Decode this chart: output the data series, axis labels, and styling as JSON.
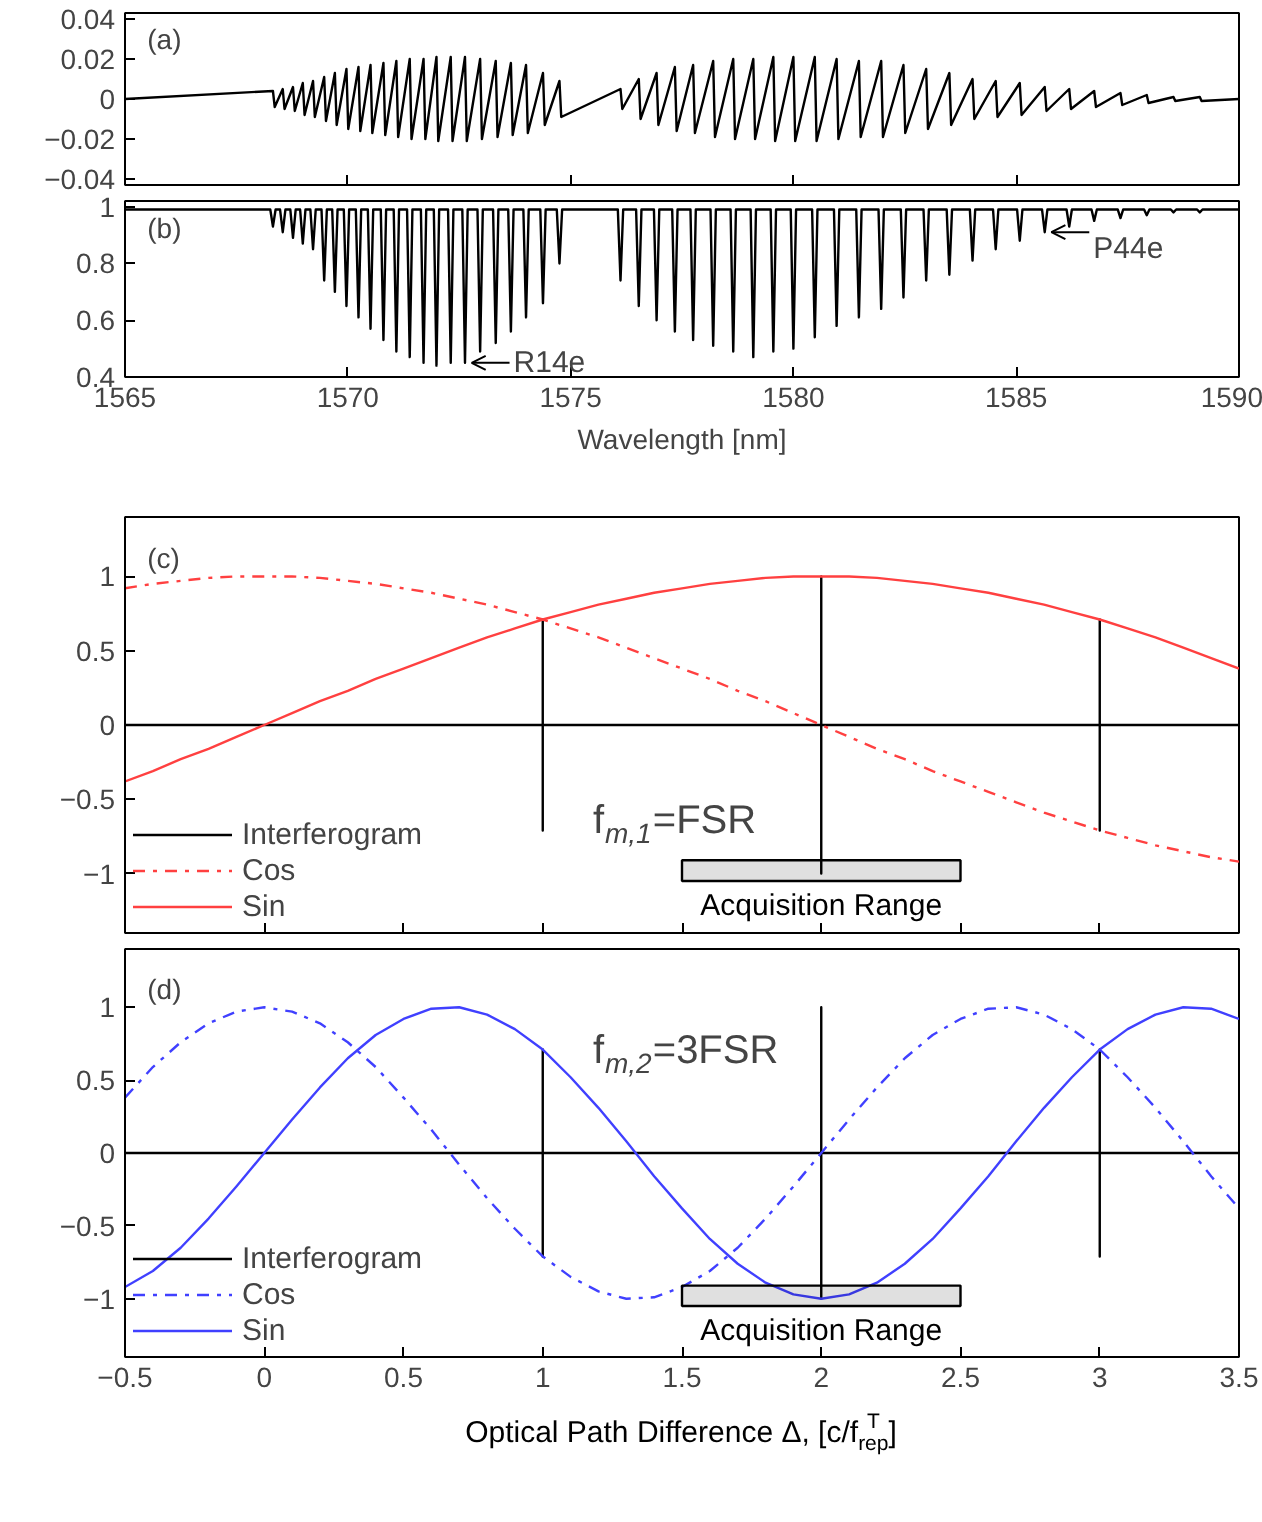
{
  "chart_data": [
    {
      "type": "line",
      "title": "(a)",
      "xlim": [
        1565,
        1590
      ],
      "xticks": [
        1565,
        1570,
        1575,
        1580,
        1585,
        1590
      ],
      "ylim": [
        -0.043,
        0.043
      ],
      "yticks": [
        -0.04,
        -0.02,
        0,
        0.02,
        0.04
      ],
      "tick_labels": "y",
      "series": [
        {
          "color": "#000000",
          "x": [
            1565,
            1568.32,
            1568.36,
            1568.54,
            1568.58,
            1568.77,
            1568.81,
            1568.99,
            1569.03,
            1569.22,
            1569.26,
            1569.47,
            1569.51,
            1569.71,
            1569.75,
            1569.97,
            1570.01,
            1570.24,
            1570.28,
            1570.51,
            1570.55,
            1570.8,
            1570.84,
            1571.09,
            1571.13,
            1571.39,
            1571.43,
            1571.7,
            1571.74,
            1571.99,
            1572.03,
            1572.31,
            1572.35,
            1572.63,
            1572.67,
            1572.97,
            1573.01,
            1573.32,
            1573.36,
            1573.66,
            1573.7,
            1574.0,
            1574.04,
            1574.38,
            1574.42,
            1574.75,
            1574.79,
            1576.12,
            1576.16,
            1576.53,
            1576.57,
            1576.93,
            1576.97,
            1577.34,
            1577.38,
            1577.75,
            1577.79,
            1578.2,
            1578.24,
            1578.65,
            1578.69,
            1579.1,
            1579.14,
            1579.55,
            1579.59,
            1580.0,
            1580.04,
            1580.48,
            1580.52,
            1580.97,
            1581.01,
            1581.47,
            1581.51,
            1581.97,
            1582.01,
            1582.47,
            1582.51,
            1582.98,
            1583.02,
            1583.5,
            1583.54,
            1584.02,
            1584.06,
            1584.54,
            1584.58,
            1585.08,
            1585.12,
            1585.64,
            1585.68,
            1586.19,
            1586.23,
            1586.75,
            1586.79,
            1587.34,
            1587.38,
            1587.93,
            1587.97,
            1588.53,
            1588.57,
            1589.12,
            1589.16,
            1590
          ],
          "values": [
            0,
            0.004,
            -0.004,
            0.005,
            -0.005,
            0.006,
            -0.006,
            0.008,
            -0.008,
            0.009,
            -0.009,
            0.011,
            -0.011,
            0.013,
            -0.013,
            0.015,
            -0.015,
            0.016,
            -0.016,
            0.017,
            -0.017,
            0.018,
            -0.018,
            0.019,
            -0.019,
            0.02,
            -0.02,
            0.02,
            -0.02,
            0.021,
            -0.021,
            0.021,
            -0.021,
            0.021,
            -0.021,
            0.02,
            -0.02,
            0.019,
            -0.019,
            0.018,
            -0.018,
            0.017,
            -0.017,
            0.013,
            -0.013,
            0.009,
            -0.009,
            0.005,
            -0.005,
            0.01,
            -0.01,
            0.013,
            -0.013,
            0.016,
            -0.016,
            0.017,
            -0.017,
            0.019,
            -0.019,
            0.02,
            -0.02,
            0.02,
            -0.02,
            0.021,
            -0.021,
            0.021,
            -0.021,
            0.021,
            -0.021,
            0.02,
            -0.02,
            0.019,
            -0.019,
            0.019,
            -0.019,
            0.017,
            -0.017,
            0.015,
            -0.015,
            0.013,
            -0.013,
            0.01,
            -0.01,
            0.009,
            -0.009,
            0.008,
            -0.008,
            0.006,
            -0.006,
            0.005,
            -0.005,
            0.004,
            -0.004,
            0.003,
            -0.003,
            0.002,
            -0.002,
            0.001,
            -0.001,
            0.001,
            -0.001,
            0
          ]
        }
      ]
    },
    {
      "type": "line",
      "title": "(b)",
      "xlabel": "Wavelength [nm]",
      "xlim": [
        1565,
        1590
      ],
      "xticks": [
        1565,
        1570,
        1575,
        1580,
        1585,
        1590
      ],
      "ylim": [
        0.4,
        1.02
      ],
      "yticks": [
        0.4,
        0.6,
        0.8,
        1
      ],
      "annotations": [
        {
          "text": "R14e",
          "x": 1572.63,
          "y": 0.45
        },
        {
          "text": "P44e",
          "x": 1585.64,
          "y": 0.91
        }
      ],
      "series": [
        {
          "color": "#000000",
          "x": [
            1565,
            1568.26,
            1568.32,
            1568.38,
            1568.48,
            1568.54,
            1568.6,
            1568.71,
            1568.77,
            1568.83,
            1568.93,
            1568.99,
            1569.05,
            1569.16,
            1569.22,
            1569.28,
            1569.41,
            1569.47,
            1569.53,
            1569.65,
            1569.71,
            1569.77,
            1569.91,
            1569.97,
            1570.03,
            1570.18,
            1570.24,
            1570.3,
            1570.45,
            1570.51,
            1570.57,
            1570.74,
            1570.8,
            1570.86,
            1571.03,
            1571.09,
            1571.15,
            1571.33,
            1571.39,
            1571.45,
            1571.64,
            1571.7,
            1571.76,
            1571.93,
            1571.99,
            1572.05,
            1572.25,
            1572.31,
            1572.37,
            1572.57,
            1572.63,
            1572.69,
            1572.91,
            1572.97,
            1573.03,
            1573.26,
            1573.32,
            1573.38,
            1573.6,
            1573.66,
            1573.72,
            1573.94,
            1574.0,
            1574.06,
            1574.32,
            1574.38,
            1574.44,
            1574.69,
            1574.75,
            1574.81,
            1576.06,
            1576.12,
            1576.18,
            1576.47,
            1576.53,
            1576.59,
            1576.87,
            1576.93,
            1576.99,
            1577.28,
            1577.34,
            1577.4,
            1577.69,
            1577.75,
            1577.81,
            1578.14,
            1578.2,
            1578.26,
            1578.59,
            1578.65,
            1578.71,
            1579.04,
            1579.1,
            1579.16,
            1579.49,
            1579.55,
            1579.61,
            1579.94,
            1580.0,
            1580.06,
            1580.42,
            1580.48,
            1580.54,
            1580.91,
            1580.97,
            1581.03,
            1581.41,
            1581.47,
            1581.53,
            1581.91,
            1581.97,
            1582.03,
            1582.41,
            1582.47,
            1582.53,
            1582.92,
            1582.98,
            1583.04,
            1583.44,
            1583.5,
            1583.56,
            1583.96,
            1584.02,
            1584.08,
            1584.48,
            1584.54,
            1584.6,
            1585.02,
            1585.08,
            1585.14,
            1585.58,
            1585.64,
            1585.7,
            1586.13,
            1586.19,
            1586.25,
            1586.69,
            1586.75,
            1586.81,
            1587.28,
            1587.34,
            1587.4,
            1587.87,
            1587.93,
            1587.99,
            1588.47,
            1588.53,
            1588.59,
            1589.06,
            1589.12,
            1589.18,
            1590
          ],
          "values": [
            0.99,
            0.99,
            0.93,
            0.99,
            0.99,
            0.91,
            0.99,
            0.99,
            0.89,
            0.99,
            0.99,
            0.87,
            0.99,
            0.99,
            0.85,
            0.99,
            0.99,
            0.74,
            0.99,
            0.99,
            0.7,
            0.99,
            0.99,
            0.65,
            0.99,
            0.99,
            0.61,
            0.99,
            0.99,
            0.57,
            0.99,
            0.99,
            0.53,
            0.99,
            0.99,
            0.49,
            0.99,
            0.99,
            0.47,
            0.99,
            0.99,
            0.45,
            0.99,
            0.99,
            0.44,
            0.99,
            0.99,
            0.45,
            0.99,
            0.99,
            0.45,
            0.99,
            0.99,
            0.49,
            0.99,
            0.99,
            0.52,
            0.99,
            0.99,
            0.56,
            0.99,
            0.99,
            0.61,
            0.99,
            0.99,
            0.66,
            0.99,
            0.99,
            0.8,
            0.99,
            0.99,
            0.74,
            0.99,
            0.99,
            0.65,
            0.99,
            0.99,
            0.6,
            0.99,
            0.99,
            0.56,
            0.99,
            0.99,
            0.53,
            0.99,
            0.99,
            0.51,
            0.99,
            0.99,
            0.49,
            0.99,
            0.99,
            0.47,
            0.99,
            0.99,
            0.49,
            0.99,
            0.99,
            0.5,
            0.99,
            0.99,
            0.54,
            0.99,
            0.99,
            0.58,
            0.99,
            0.99,
            0.61,
            0.99,
            0.99,
            0.64,
            0.99,
            0.99,
            0.68,
            0.99,
            0.99,
            0.74,
            0.99,
            0.99,
            0.76,
            0.99,
            0.99,
            0.81,
            0.99,
            0.99,
            0.85,
            0.99,
            0.99,
            0.88,
            0.99,
            0.99,
            0.91,
            0.99,
            0.99,
            0.93,
            0.99,
            0.99,
            0.95,
            0.99,
            0.99,
            0.96,
            0.99,
            0.99,
            0.97,
            0.99,
            0.99,
            0.98,
            0.99,
            0.99,
            0.98,
            0.99,
            0.99
          ]
        }
      ]
    },
    {
      "type": "line",
      "title": "(c)",
      "xlim": [
        -0.5,
        3.5
      ],
      "xticks": [
        -0.5,
        0,
        0.5,
        1,
        1.5,
        2,
        2.5,
        3,
        3.5
      ],
      "ylim": [
        -1.4,
        1.4
      ],
      "yticks": [
        -1,
        -0.5,
        0,
        0.5,
        1
      ],
      "tick_labels": "y",
      "legend": "bottom left",
      "annotations": [
        "f$_{m,1}$=FSR"
      ],
      "bands": [
        {
          "axis": "x",
          "from": 1.5,
          "to": 2.5,
          "label": "Acquisition Range",
          "color": "#000000"
        }
      ],
      "series": [
        {
          "name": "Interferogram",
          "color": "#000000",
          "line_style": "solid",
          "x": [
            -0.5,
            1,
            1,
            1,
            1,
            2,
            2,
            2,
            2,
            3,
            3,
            3,
            3,
            3.5
          ],
          "values": [
            0,
            0,
            0.71,
            -0.71,
            0,
            0,
            1,
            -1,
            0,
            0,
            0.71,
            -0.71,
            0,
            0
          ]
        },
        {
          "name": "Cos",
          "color": "#ff4040",
          "line_style": "dashdot",
          "x": [
            -0.5,
            -0.4,
            -0.3,
            -0.2,
            -0.1,
            0,
            0.1,
            0.2,
            0.3,
            0.4,
            0.5,
            0.6,
            0.7,
            0.8,
            0.9,
            1,
            1.1,
            1.2,
            1.3,
            1.4,
            1.5,
            1.6,
            1.7,
            1.8,
            1.9,
            2,
            2.1,
            2.2,
            2.3,
            2.4,
            2.5,
            2.6,
            2.7,
            2.8,
            2.9,
            3,
            3.1,
            3.2,
            3.3,
            3.4,
            3.5
          ],
          "values": [
            0.92,
            0.95,
            0.97,
            0.99,
            1.0,
            1,
            1.0,
            0.99,
            0.97,
            0.95,
            0.92,
            0.89,
            0.85,
            0.81,
            0.76,
            0.71,
            0.65,
            0.59,
            0.52,
            0.45,
            0.38,
            0.31,
            0.23,
            0.16,
            0.08,
            0,
            -0.08,
            -0.16,
            -0.23,
            -0.31,
            -0.38,
            -0.45,
            -0.52,
            -0.59,
            -0.65,
            -0.71,
            -0.76,
            -0.81,
            -0.85,
            -0.89,
            -0.92
          ]
        },
        {
          "name": "Sin",
          "color": "#ff4040",
          "line_style": "solid",
          "x": [
            -0.5,
            -0.4,
            -0.3,
            -0.2,
            -0.1,
            0,
            0.1,
            0.2,
            0.3,
            0.4,
            0.5,
            0.6,
            0.7,
            0.8,
            0.9,
            1,
            1.1,
            1.2,
            1.3,
            1.4,
            1.5,
            1.6,
            1.7,
            1.8,
            1.9,
            2,
            2.1,
            2.2,
            2.3,
            2.4,
            2.5,
            2.6,
            2.7,
            2.8,
            2.9,
            3,
            3.1,
            3.2,
            3.3,
            3.4,
            3.5
          ],
          "values": [
            -0.38,
            -0.31,
            -0.23,
            -0.16,
            -0.08,
            0,
            0.08,
            0.16,
            0.23,
            0.31,
            0.38,
            0.45,
            0.52,
            0.59,
            0.65,
            0.71,
            0.76,
            0.81,
            0.85,
            0.89,
            0.92,
            0.95,
            0.97,
            0.99,
            1.0,
            1,
            1.0,
            0.99,
            0.97,
            0.95,
            0.92,
            0.89,
            0.85,
            0.81,
            0.76,
            0.71,
            0.65,
            0.59,
            0.52,
            0.45,
            0.38
          ]
        }
      ]
    },
    {
      "type": "line",
      "title": "(d)",
      "xlabel": "Optical Path Difference Δ, [c/f$^{T}$$_{rep}$]",
      "xlim": [
        -0.5,
        3.5
      ],
      "xticks": [
        -0.5,
        0,
        0.5,
        1,
        1.5,
        2,
        2.5,
        3,
        3.5
      ],
      "ylim": [
        -1.4,
        1.4
      ],
      "yticks": [
        -1,
        -0.5,
        0,
        0.5,
        1
      ],
      "legend": "bottom left",
      "annotations": [
        "f$_{m,2}$=3FSR"
      ],
      "bands": [
        {
          "axis": "x",
          "from": 1.5,
          "to": 2.5,
          "label": "Acquisition Range",
          "color": "#000000"
        }
      ],
      "series": [
        {
          "name": "Interferogram",
          "color": "#000000",
          "line_style": "solid",
          "x": [
            -0.5,
            1,
            1,
            1,
            1,
            2,
            2,
            2,
            2,
            3,
            3,
            3,
            3,
            3.5
          ],
          "values": [
            0,
            0,
            0.71,
            -0.71,
            0,
            0,
            1,
            -1,
            0,
            0,
            0.71,
            -0.71,
            0,
            0
          ]
        },
        {
          "name": "Cos",
          "color": "#4040ff",
          "line_style": "dashdot",
          "x": [
            -0.5,
            -0.4,
            -0.3,
            -0.2,
            -0.1,
            0,
            0.1,
            0.2,
            0.3,
            0.4,
            0.5,
            0.6,
            0.7,
            0.8,
            0.9,
            1,
            1.1,
            1.2,
            1.3,
            1.4,
            1.5,
            1.6,
            1.7,
            1.8,
            1.9,
            2,
            2.1,
            2.2,
            2.3,
            2.4,
            2.5,
            2.6,
            2.7,
            2.8,
            2.9,
            3,
            3.1,
            3.2,
            3.3,
            3.4,
            3.5
          ],
          "values": [
            0.38,
            0.59,
            0.76,
            0.89,
            0.97,
            1,
            0.97,
            0.89,
            0.76,
            0.59,
            0.38,
            0.16,
            -0.08,
            -0.31,
            -0.52,
            -0.71,
            -0.85,
            -0.95,
            -1.0,
            -0.99,
            -0.92,
            -0.81,
            -0.65,
            -0.45,
            -0.23,
            0,
            0.23,
            0.45,
            0.65,
            0.81,
            0.92,
            0.99,
            1.0,
            0.95,
            0.85,
            0.71,
            0.52,
            0.31,
            0.08,
            -0.16,
            -0.38
          ]
        },
        {
          "name": "Sin",
          "color": "#4040ff",
          "line_style": "solid",
          "x": [
            -0.5,
            -0.4,
            -0.3,
            -0.2,
            -0.1,
            0,
            0.1,
            0.2,
            0.3,
            0.4,
            0.5,
            0.6,
            0.7,
            0.8,
            0.9,
            1,
            1.1,
            1.2,
            1.3,
            1.4,
            1.5,
            1.6,
            1.7,
            1.8,
            1.9,
            2,
            2.1,
            2.2,
            2.3,
            2.4,
            2.5,
            2.6,
            2.7,
            2.8,
            2.9,
            3,
            3.1,
            3.2,
            3.3,
            3.4,
            3.5
          ],
          "values": [
            -0.92,
            -0.81,
            -0.65,
            -0.45,
            -0.23,
            0,
            0.23,
            0.45,
            0.65,
            0.81,
            0.92,
            0.99,
            1.0,
            0.95,
            0.85,
            0.71,
            0.52,
            0.31,
            0.08,
            -0.16,
            -0.38,
            -0.59,
            -0.76,
            -0.89,
            -0.97,
            -1,
            -0.97,
            -0.89,
            -0.76,
            -0.59,
            -0.38,
            -0.16,
            0.08,
            0.31,
            0.52,
            0.71,
            0.85,
            0.95,
            1.0,
            0.99,
            0.92
          ]
        }
      ]
    }
  ]
}
